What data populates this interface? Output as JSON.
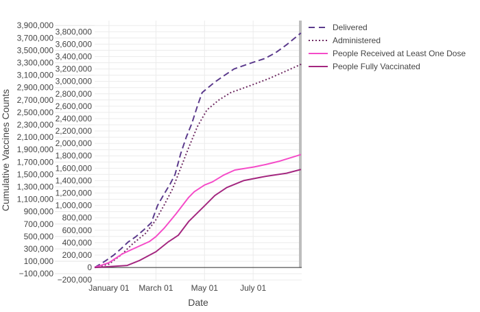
{
  "chart_data": {
    "type": "line",
    "title": "",
    "xlabel": "Date",
    "ylabel": "Cumulative Vaccines Counts",
    "xlim": [
      "2020-12-14",
      "2021-08-31"
    ],
    "ylim": [
      -220000,
      3980000
    ],
    "x_ticks": [
      {
        "date": "2021-01-01",
        "label": "January 01"
      },
      {
        "date": "2021-03-01",
        "label": "March 01"
      },
      {
        "date": "2021-05-01",
        "label": "May 01"
      },
      {
        "date": "2021-07-01",
        "label": "July 01"
      }
    ],
    "y_tick_step": 100000,
    "y_tick_range": [
      -200000,
      3900000
    ],
    "grid": true,
    "legend_position": "top-right-outside",
    "series": [
      {
        "name": "Delivered",
        "color": "#5b3a8c",
        "dash": "dash",
        "x": [
          "2020-12-14",
          "2020-12-24",
          "2020-12-28",
          "2021-01-07",
          "2021-01-16",
          "2021-01-25",
          "2021-02-04",
          "2021-02-14",
          "2021-02-23",
          "2021-03-03",
          "2021-03-11",
          "2021-03-19",
          "2021-03-25",
          "2021-04-01",
          "2021-04-08",
          "2021-04-15",
          "2021-04-22",
          "2021-04-28",
          "2021-05-13",
          "2021-05-23",
          "2021-06-07",
          "2021-06-27",
          "2021-07-16",
          "2021-07-29",
          "2021-08-12",
          "2021-08-30"
        ],
        "y": [
          0,
          77000,
          110000,
          200000,
          300000,
          410000,
          500000,
          610000,
          720000,
          1000000,
          1180000,
          1350000,
          1500000,
          1830000,
          2100000,
          2320000,
          2600000,
          2820000,
          2980000,
          3070000,
          3200000,
          3290000,
          3370000,
          3460000,
          3590000,
          3780000
        ]
      },
      {
        "name": "Administered",
        "color": "#6e2a62",
        "dash": "dot",
        "x": [
          "2020-12-14",
          "2021-01-01",
          "2021-01-16",
          "2021-01-31",
          "2021-02-16",
          "2021-02-28",
          "2021-03-11",
          "2021-03-22",
          "2021-04-01",
          "2021-04-11",
          "2021-04-22",
          "2021-05-04",
          "2021-05-19",
          "2021-06-03",
          "2021-06-27",
          "2021-07-20",
          "2021-08-12",
          "2021-08-31"
        ],
        "y": [
          0,
          55000,
          200000,
          385000,
          550000,
          750000,
          1000000,
          1270000,
          1600000,
          1930000,
          2270000,
          2540000,
          2700000,
          2820000,
          2930000,
          3040000,
          3170000,
          3280000
        ]
      },
      {
        "name": "People Received at Least One Dose",
        "color": "#f54bc8",
        "dash": "solid",
        "x": [
          "2020-12-14",
          "2021-01-01",
          "2021-01-18",
          "2021-01-31",
          "2021-02-21",
          "2021-03-01",
          "2021-03-11",
          "2021-03-26",
          "2021-04-11",
          "2021-04-18",
          "2021-05-01",
          "2021-05-11",
          "2021-05-25",
          "2021-06-08",
          "2021-07-02",
          "2021-07-17",
          "2021-08-02",
          "2021-08-30"
        ],
        "y": [
          0,
          77000,
          221000,
          298000,
          420000,
          497000,
          630000,
          862000,
          1130000,
          1220000,
          1330000,
          1380000,
          1490000,
          1570000,
          1620000,
          1660000,
          1710000,
          1820000
        ]
      },
      {
        "name": "People Fully Vaccinated",
        "color": "#a3267f",
        "dash": "solid",
        "x": [
          "2020-12-14",
          "2021-01-24",
          "2021-02-08",
          "2021-03-01",
          "2021-03-16",
          "2021-03-29",
          "2021-04-11",
          "2021-05-01",
          "2021-05-14",
          "2021-05-29",
          "2021-06-19",
          "2021-07-17",
          "2021-08-12",
          "2021-08-30"
        ],
        "y": [
          0,
          33000,
          110000,
          254000,
          409000,
          519000,
          740000,
          994000,
          1160000,
          1290000,
          1400000,
          1470000,
          1520000,
          1580000
        ]
      }
    ]
  }
}
